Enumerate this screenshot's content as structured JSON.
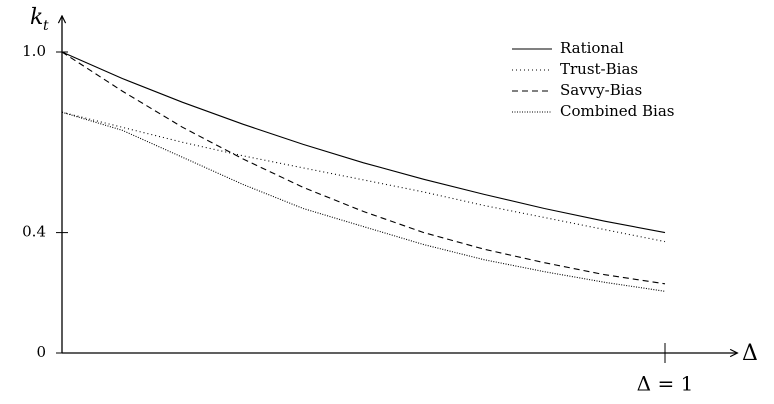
{
  "chart_data": {
    "type": "line",
    "x_label": "Δ",
    "y_label": "k",
    "y_label_subscript": "t",
    "x": [
      0,
      0.1,
      0.2,
      0.3,
      0.4,
      0.5,
      0.6,
      0.7,
      0.8,
      0.9,
      1.0
    ],
    "series": [
      {
        "name": "Rational",
        "color": "#000000",
        "dash": "none",
        "values": [
          1.0,
          0.912,
          0.833,
          0.76,
          0.693,
          0.632,
          0.577,
          0.527,
          0.48,
          0.438,
          0.4
        ]
      },
      {
        "name": "Trust-Bias",
        "color": "#000000",
        "dash": "1,3",
        "values": [
          0.8,
          0.75,
          0.7,
          0.655,
          0.615,
          0.575,
          0.535,
          0.49,
          0.45,
          0.41,
          0.37
        ]
      },
      {
        "name": "Savvy-Bias",
        "color": "#000000",
        "dash": "6,4",
        "values": [
          1.0,
          0.87,
          0.75,
          0.645,
          0.55,
          0.47,
          0.4,
          0.345,
          0.3,
          0.26,
          0.23
        ]
      },
      {
        "name": "Combined Bias",
        "color": "#000000",
        "dash": "1,1.5",
        "values": [
          0.8,
          0.74,
          0.65,
          0.56,
          0.48,
          0.42,
          0.36,
          0.31,
          0.27,
          0.235,
          0.205
        ]
      }
    ],
    "xlim": [
      0,
      1.12
    ],
    "ylim": [
      0,
      1.12
    ],
    "xticks": [
      {
        "value": 1,
        "label": "Δ = 1"
      }
    ],
    "yticks": [
      0,
      0.4,
      {
        "value": 1,
        "label": "1.0"
      }
    ],
    "grid": false,
    "legend": "upper right"
  }
}
